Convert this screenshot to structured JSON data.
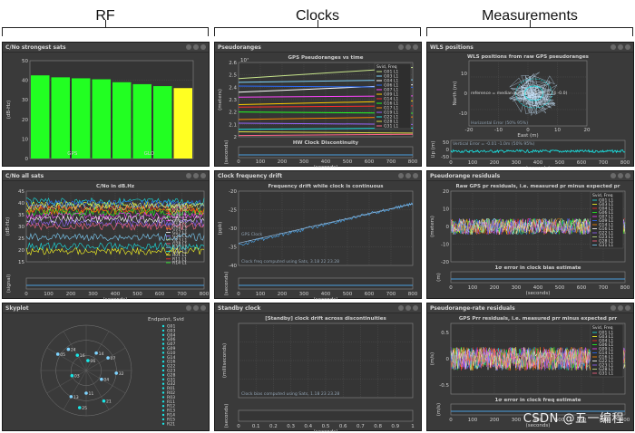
{
  "headers": {
    "rf": "RF",
    "clocks": "Clocks",
    "measurements": "Measurements"
  },
  "panels": {
    "p1": "C/No strongest sats",
    "p2": "Pseudoranges",
    "p3": "WLS positions",
    "p4": "C/No all sats",
    "p5": "Clock frequency drift",
    "p6": "Pseudorange residuals",
    "p7": "Skyplot",
    "p8": "Standby clock",
    "p9": "Pseudorange-rate residuals"
  },
  "colors": {
    "panel_bg": "#3a3a3a",
    "plot_bg": "#353535",
    "bar_green": "#22ff22",
    "bar_yellow": "#ffff22",
    "cyan": "#19e6e6",
    "blue": "#4a9fe0"
  },
  "charts": {
    "cno_strongest": {
      "chart_data": {
        "type": "bar",
        "values": [
          42.5,
          41.5,
          41,
          40.5,
          39,
          38,
          37,
          36
        ],
        "colors": [
          "#22ff22",
          "#22ff22",
          "#22ff22",
          "#22ff22",
          "#22ff22",
          "#22ff22",
          "#22ff22",
          "#ffff22"
        ],
        "ylabel": "(dB-Hz)",
        "yticks": [
          "0",
          "10",
          "20",
          "30",
          "40",
          "50"
        ],
        "ylim": [
          0,
          50
        ],
        "group_labels": [
          "GPS",
          "GLO"
        ]
      }
    },
    "pseudoranges": {
      "chart_data": {
        "type": "line",
        "title": "GPS Pseudoranges vs time",
        "ylabel": "(meters)",
        "y_exponent": "10⁷",
        "yticks": [
          "2",
          "2.1",
          "2.2",
          "2.3",
          "2.4",
          "2.5",
          "2.6"
        ],
        "ylim": [
          2,
          2.6
        ],
        "xticks": [
          "0",
          "100",
          "200",
          "300",
          "400",
          "500",
          "600",
          "700",
          "800"
        ],
        "xlabel": "(seconds)",
        "legend_title": "Svid, Freq",
        "series": [
          {
            "name": "G01 L1",
            "start": 2.47,
            "end": 2.56,
            "color": "#c8e68c"
          },
          {
            "name": "G03 L1",
            "start": 2.44,
            "end": 2.46,
            "color": "#7fd4ff"
          },
          {
            "name": "G04 L1",
            "start": 2.36,
            "end": 2.42,
            "color": "#ffffff"
          },
          {
            "name": "G06 L1",
            "start": 2.41,
            "end": 2.4,
            "color": "#2b6cff"
          },
          {
            "name": "G07 L1",
            "start": 2.32,
            "end": 2.33,
            "color": "#ff44ff"
          },
          {
            "name": "G09 L1",
            "start": 2.26,
            "end": 2.29,
            "color": "#ffcc00"
          },
          {
            "name": "G14 L1",
            "start": 2.24,
            "end": 2.25,
            "color": "#ff2b2b"
          },
          {
            "name": "G16 L1",
            "start": 2.2,
            "end": 2.19,
            "color": "#22ff22"
          },
          {
            "name": "G17 L1",
            "start": 2.14,
            "end": 2.16,
            "color": "#ff8800"
          },
          {
            "name": "G19 L1",
            "start": 2.11,
            "end": 2.1,
            "color": "#9966ff"
          },
          {
            "name": "G22 L1",
            "start": 2.06,
            "end": 2.07,
            "color": "#19e6e6"
          },
          {
            "name": "G28 L1",
            "start": 2.04,
            "end": 2.03,
            "color": "#dddd44"
          },
          {
            "name": "G31 L1",
            "start": 2.01,
            "end": 2.02,
            "color": "#ff6688"
          }
        ],
        "sub_title": "HW Clock Discontinuity",
        "sub_ylabel": "(seconds)"
      }
    },
    "wls": {
      "chart_data": {
        "type": "scatter",
        "title": "WLS positions from raw GPS pseudoranges",
        "ylabel": "North (m)",
        "xlabel": "East (m)",
        "xticks": [
          "-20",
          "-10",
          "0",
          "10",
          "20"
        ],
        "yticks": [
          "10",
          "0",
          "-10"
        ],
        "legend": "reference = median position (-5.39 -5.74 -0.0)",
        "bottom_note": "Horizontal Error (50% 95%)",
        "sub_ylabel": "Up (m)",
        "sub_xticks": [
          "0",
          "100",
          "200",
          "300",
          "400",
          "500",
          "600",
          "700",
          "800"
        ],
        "sub_yticks": [
          "50",
          "0",
          "-50"
        ],
        "sub_xlabel": "(seconds)",
        "sub_note": "Vertical Error = -0.01 -1.0m (50% 95%)"
      }
    },
    "cno_all": {
      "chart_data": {
        "type": "line",
        "title": "C/No in dB.Hz",
        "ylabel": "(dB-Hz)",
        "yticks": [
          "45",
          "40",
          "35",
          "30",
          "25",
          "20",
          "15"
        ],
        "ylim": [
          15,
          45
        ],
        "xticks": [
          "0",
          "100",
          "200",
          "300",
          "400",
          "500",
          "600",
          "700",
          "800"
        ],
        "xlabel": "(seconds)",
        "legend": [
          "G01 L1",
          "G03 L1",
          "G04 L1",
          "G06 L1",
          "G09 L1",
          "G14 L1",
          "G16 L1",
          "G17 L1",
          "G22 L1",
          "G23 L1",
          "G28 L1",
          "G31 L1",
          "G32 L1",
          "R01 L1",
          "R11 L1",
          "R14 L1"
        ],
        "sub_ylabel": "(signal)"
      }
    },
    "clock_drift": {
      "chart_data": {
        "type": "line",
        "title": "Frequency drift while clock is continuous",
        "ylabel": "(ppb)",
        "yticks": [
          "-20",
          "-25",
          "-30",
          "-35",
          "-40"
        ],
        "xticks": [
          "0",
          "100",
          "200",
          "300",
          "400",
          "500",
          "600",
          "700",
          "800"
        ],
        "xlabel": "(seconds)",
        "legend": "GPS Clock",
        "note": "Clock freq computed using Sats, 3.18 22 23.28",
        "sub_ylabel": "(seconds)"
      }
    },
    "pr_resid": {
      "chart_data": {
        "type": "line",
        "title": "Raw GPS pr residuals, i.e. measured pr minus expected pr",
        "ylabel": "(meters)",
        "yticks": [
          "20",
          "10",
          "0",
          "-10",
          "-20"
        ],
        "xticks": [
          "0",
          "100",
          "200",
          "300",
          "400",
          "500",
          "600",
          "700",
          "800"
        ],
        "xlabel": "(seconds)",
        "legend_title": "Svid, Freq",
        "legend": [
          "G01 L1",
          "G03 L1",
          "G04 L1",
          "G06 L1",
          "G07 L1",
          "G09 L1",
          "G14 L1",
          "G16 L1",
          "G22 L1",
          "G23 L1",
          "G28 L1",
          "G31 L1"
        ],
        "sub_title": "1σ error in clock bias estimate",
        "sub_ylabel": "(m)"
      }
    },
    "skyplot": {
      "chart_data": {
        "type": "scatter",
        "title": "Endpoint, Svid",
        "legend": [
          "G01",
          "G03",
          "G04",
          "G06",
          "G07",
          "G09",
          "G10",
          "G14",
          "G16",
          "G22",
          "G23",
          "G28",
          "G31",
          "G32",
          "R01",
          "R02",
          "R03",
          "R11",
          "R12",
          "R13",
          "R14",
          "R15",
          "R21"
        ],
        "points": [
          {
            "label": "16",
            "az": 330,
            "el": 55
          },
          {
            "label": "05",
            "az": 300,
            "el": 25
          },
          {
            "label": "24",
            "az": 320,
            "el": 35
          },
          {
            "label": "06",
            "az": 10,
            "el": 70
          },
          {
            "label": "14",
            "az": 30,
            "el": 50
          },
          {
            "label": "07",
            "az": 60,
            "el": 40
          },
          {
            "label": "03",
            "az": 250,
            "el": 60
          },
          {
            "label": "04",
            "az": 120,
            "el": 55
          },
          {
            "label": "32",
            "az": 95,
            "el": 30
          },
          {
            "label": "21",
            "az": 150,
            "el": 20
          },
          {
            "label": "13",
            "az": 210,
            "el": 30
          },
          {
            "label": "11",
            "az": 180,
            "el": 45
          },
          {
            "label": "25",
            "az": 190,
            "el": 15
          }
        ]
      }
    },
    "standby": {
      "chart_data": {
        "type": "line",
        "title": "[Standby] clock drift across discontinuities",
        "ylabel": "(milliseconds)",
        "xticks": [
          "0",
          "0.1",
          "0.2",
          "0.3",
          "0.4",
          "0.5",
          "0.6",
          "0.7",
          "0.8",
          "0.9",
          "1"
        ],
        "xlabel": "(seconds)",
        "note": "Clock bias computed using Sats, 1.18 23 23.28",
        "sub_ylabel": "(seconds)"
      }
    },
    "prr_resid": {
      "chart_data": {
        "type": "line",
        "title": "GPS Prr residuals, i.e. measured prr minus expected prr",
        "ylabel": "(m/s)",
        "yticks": [
          "0.5",
          "0",
          "-0.5"
        ],
        "xticks": [
          "0",
          "100",
          "200",
          "300",
          "400",
          "500",
          "600",
          "700",
          "800"
        ],
        "xlabel": "(seconds)",
        "legend_title": "Svid, Freq",
        "legend": [
          "G01 L1",
          "G03 L1",
          "G04 L1",
          "G06 L1",
          "G09 L1",
          "G14 L1",
          "G16 L1",
          "G22 L1",
          "G23 L1",
          "G28 L1",
          "G31 L1"
        ],
        "sub_title": "1σ error in clock freq estimate",
        "sub_ylabel": "(m/s)"
      }
    }
  },
  "watermark": "CSDN @五一编程"
}
